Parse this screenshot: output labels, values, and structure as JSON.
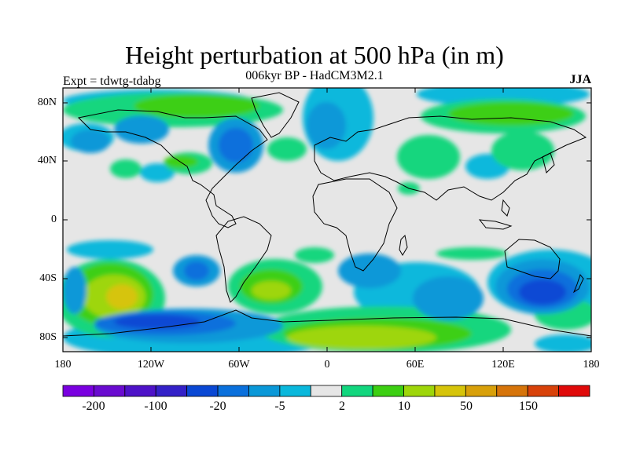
{
  "header": {
    "title": "Height perturbation at 500 hPa (in m)",
    "subtitle": "006kyr BP - HadCM3M2.1",
    "left_note": "Expt = tdwtg-tdabg",
    "right_note": "JJA"
  },
  "map": {
    "lat_labels": [
      "80N",
      "40N",
      "0",
      "40S",
      "80S"
    ],
    "lat_values": [
      80,
      40,
      0,
      -40,
      -80
    ],
    "lon_labels": [
      "180",
      "120W",
      "60W",
      "0",
      "60E",
      "120E",
      "180"
    ],
    "lon_values": [
      -180,
      -120,
      -60,
      0,
      60,
      120,
      180
    ],
    "extent": {
      "lon": [
        -180,
        180
      ],
      "lat": [
        -90,
        90
      ]
    }
  },
  "colorbar": {
    "colors": [
      "#7a00e0",
      "#6a0bd0",
      "#4e12c8",
      "#3421c8",
      "#0a48d4",
      "#0a70dc",
      "#0a98d8",
      "#0ab8dc",
      "#e6e6e6",
      "#12d67e",
      "#3ccf12",
      "#9ed60a",
      "#d6c40a",
      "#d8a00a",
      "#d6740a",
      "#d8420a",
      "#e00a0a"
    ],
    "labels": [
      "-200",
      "-100",
      "-20",
      "-5",
      "2",
      "10",
      "50",
      "150"
    ]
  }
}
